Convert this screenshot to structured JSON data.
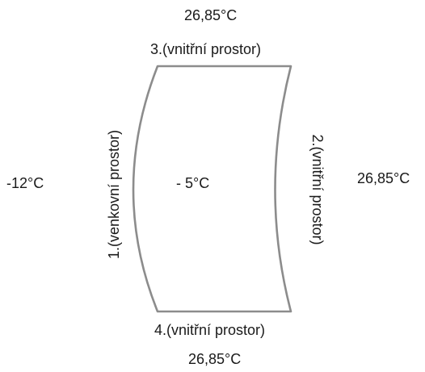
{
  "diagram": {
    "shape_stroke_color": "#8c8c8c",
    "text_color": "#1a1a1a",
    "outside_temperature": "-12°C",
    "inside_temperature": "- 5°C",
    "top_temperature": "26,85°C",
    "right_temperature": "26,85°C",
    "bottom_temperature": "26,85°C",
    "wall_1_label": "1.(venkovní prostor)",
    "wall_2_label": "2.(vnitřní prostor)",
    "wall_3_label": "3.(vnitřní prostor)",
    "wall_4_label": "4.(vnitřní prostor)"
  }
}
